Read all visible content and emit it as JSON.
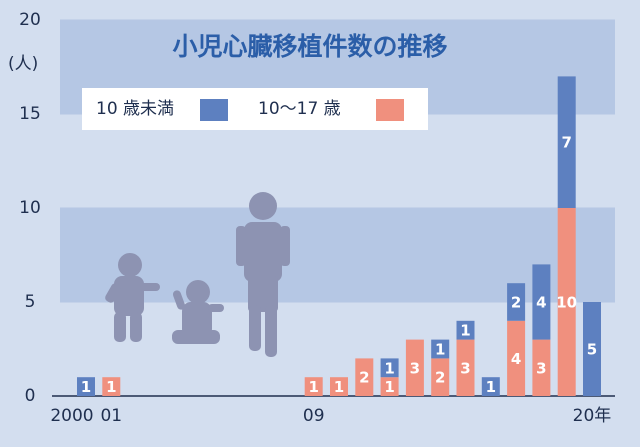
{
  "chart_data": {
    "type": "bar",
    "stacked": true,
    "title": "小児心臓移植件数の推移",
    "y_unit": "(人)",
    "categories": [
      "2000",
      "01",
      null,
      null,
      null,
      null,
      null,
      null,
      null,
      "09",
      null,
      null,
      null,
      null,
      null,
      null,
      null,
      null,
      null,
      null,
      "20年"
    ],
    "series": [
      {
        "name": "10 歳未満",
        "color": "#5d80c0",
        "values": [
          1,
          null,
          null,
          null,
          null,
          null,
          null,
          null,
          null,
          null,
          null,
          null,
          1,
          null,
          1,
          1,
          1,
          2,
          4,
          7,
          5
        ]
      },
      {
        "name": "10〜17 歳",
        "color": "#f0907e",
        "values": [
          null,
          1,
          null,
          null,
          null,
          null,
          null,
          null,
          null,
          1,
          1,
          2,
          1,
          3,
          2,
          3,
          null,
          4,
          3,
          10,
          null
        ]
      }
    ],
    "ylim": [
      0,
      20
    ],
    "yticks": [
      0,
      5,
      10,
      15,
      20
    ]
  }
}
